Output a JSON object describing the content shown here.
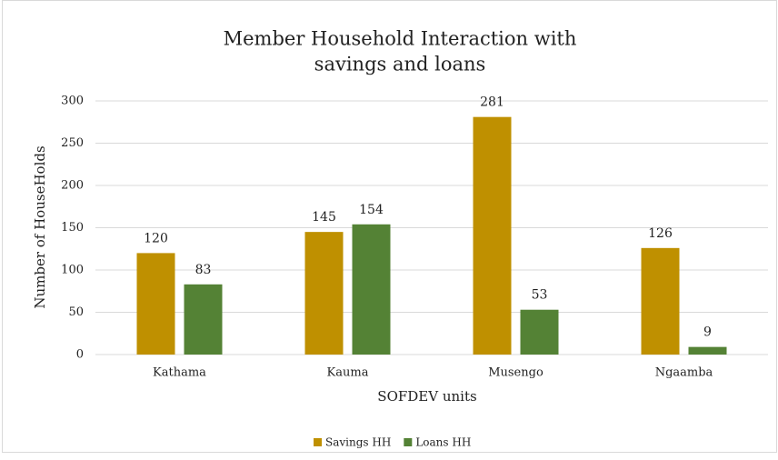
{
  "chart_data": {
    "type": "bar",
    "title": [
      "Member Household Interaction with",
      "savings and loans"
    ],
    "x_label": "SOFDEV units",
    "y_label": "Number of HouseHolds",
    "categories": [
      "Kathama",
      "Kauma",
      "Musengo",
      "Ngaamba"
    ],
    "series": [
      {
        "name": "Savings HH",
        "color": "#bf9000",
        "values": [
          120,
          145,
          281,
          126
        ]
      },
      {
        "name": "Loans HH",
        "color": "#548235",
        "values": [
          83,
          154,
          53,
          9
        ]
      }
    ],
    "ylim": [
      0,
      300
    ],
    "yticks": [
      0,
      50,
      100,
      150,
      200,
      250,
      300
    ],
    "grid": true,
    "legend": "bottom"
  }
}
